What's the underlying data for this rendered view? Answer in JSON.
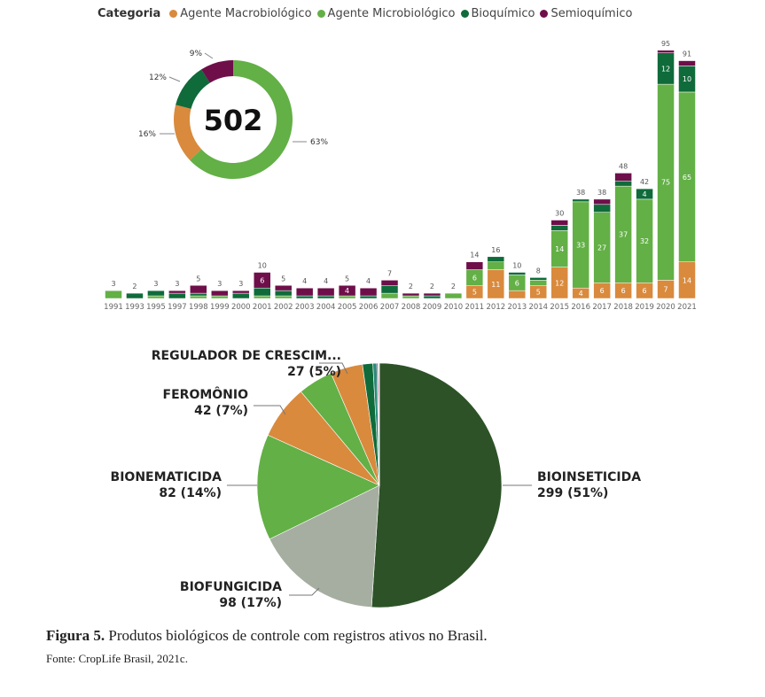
{
  "legend": {
    "title": "Categoria",
    "items": [
      {
        "label": "Agente Macrobiológico",
        "color": "#d98a3d"
      },
      {
        "label": "Agente Microbiológico",
        "color": "#63b046"
      },
      {
        "label": "Bioquímico",
        "color": "#0f6b3a"
      },
      {
        "label": "Semioquímico",
        "color": "#6e0f4a"
      }
    ]
  },
  "chart_data": [
    {
      "type": "pie",
      "variant": "donut",
      "center_label": "502",
      "slices": [
        {
          "category": "Agente Microbiológico",
          "label": "63%",
          "value": 63
        },
        {
          "category": "Agente Macrobiológico",
          "label": "16%",
          "value": 16
        },
        {
          "category": "Bioquímico",
          "label": "12%",
          "value": 12
        },
        {
          "category": "Semioquímico",
          "label": "9%",
          "value": 9
        }
      ]
    },
    {
      "type": "bar",
      "stacked": true,
      "categories": [
        "1991",
        "1993",
        "1995",
        "1997",
        "1998",
        "1999",
        "2000",
        "2001",
        "2002",
        "2003",
        "2004",
        "2005",
        "2006",
        "2007",
        "2008",
        "2009",
        "2010",
        "2011",
        "2012",
        "2013",
        "2014",
        "2015",
        "2016",
        "2017",
        "2018",
        "2019",
        "2020",
        "2021"
      ],
      "totals": [
        3,
        2,
        3,
        3,
        5,
        3,
        3,
        10,
        5,
        4,
        4,
        5,
        4,
        7,
        2,
        2,
        2,
        14,
        16,
        10,
        8,
        30,
        38,
        38,
        48,
        42,
        95,
        91
      ],
      "series": [
        {
          "name": "Agente Macrobiológico",
          "values": [
            0,
            0,
            0,
            0,
            0,
            0,
            0,
            0,
            0,
            0,
            0,
            0,
            0,
            0,
            0,
            0,
            0,
            5,
            11,
            3,
            5,
            12,
            4,
            6,
            6,
            6,
            7,
            14
          ]
        },
        {
          "name": "Agente Microbiológico",
          "values": [
            3,
            0,
            1,
            0,
            1,
            1,
            0,
            1,
            1,
            0,
            0,
            1,
            0,
            2,
            1,
            0,
            2,
            6,
            3,
            6,
            2,
            14,
            33,
            27,
            37,
            32,
            75,
            65
          ]
        },
        {
          "name": "Bioquímico",
          "values": [
            0,
            2,
            2,
            2,
            1,
            0,
            2,
            3,
            2,
            1,
            1,
            0,
            1,
            3,
            0,
            1,
            0,
            0,
            2,
            1,
            1,
            2,
            1,
            3,
            2,
            4,
            12,
            10
          ]
        },
        {
          "name": "Semioquímico",
          "values": [
            0,
            0,
            0,
            1,
            3,
            2,
            1,
            6,
            2,
            3,
            3,
            4,
            3,
            2,
            1,
            1,
            0,
            3,
            0,
            0,
            0,
            2,
            0,
            2,
            3,
            0,
            1,
            2
          ]
        }
      ],
      "grid": false
    },
    {
      "type": "pie",
      "slices": [
        {
          "label": "BIOINSETICIDA",
          "value_label": "299 (51%)",
          "value": 299,
          "color": "#2d5227"
        },
        {
          "label": "BIOFUNGICIDA",
          "value_label": "98 (17%)",
          "value": 98,
          "color": "#a5aea0"
        },
        {
          "label": "BIONEMATICIDA",
          "value_label": "82 (14%)",
          "value": 82,
          "color": "#63b046"
        },
        {
          "label": "FEROMÔNIO",
          "value_label": "42 (7%)",
          "value": 42,
          "color": "#d98a3d"
        },
        {
          "label": "REGULADOR DE CRESCIM...",
          "value_label": "27 (5%)",
          "value": 27,
          "color": "#63b046"
        },
        {
          "label": "",
          "value_label": "",
          "value": 25,
          "color": "#d98a3d"
        },
        {
          "label": "",
          "value_label": "",
          "value": 8,
          "color": "#0f6b3a"
        },
        {
          "label": "",
          "value_label": "",
          "value": 3,
          "color": "#2a8a7a"
        },
        {
          "label": "",
          "value_label": "",
          "value": 1,
          "color": "#8a1a6a"
        },
        {
          "label": "",
          "value_label": "",
          "value": 1,
          "color": "#e8efe0"
        }
      ]
    }
  ],
  "caption": {
    "figure": "Figura 5.",
    "text": " Produtos biológicos de controle com registros ativos no Brasil.",
    "source": "Fonte: CropLife Brasil, 2021c."
  }
}
